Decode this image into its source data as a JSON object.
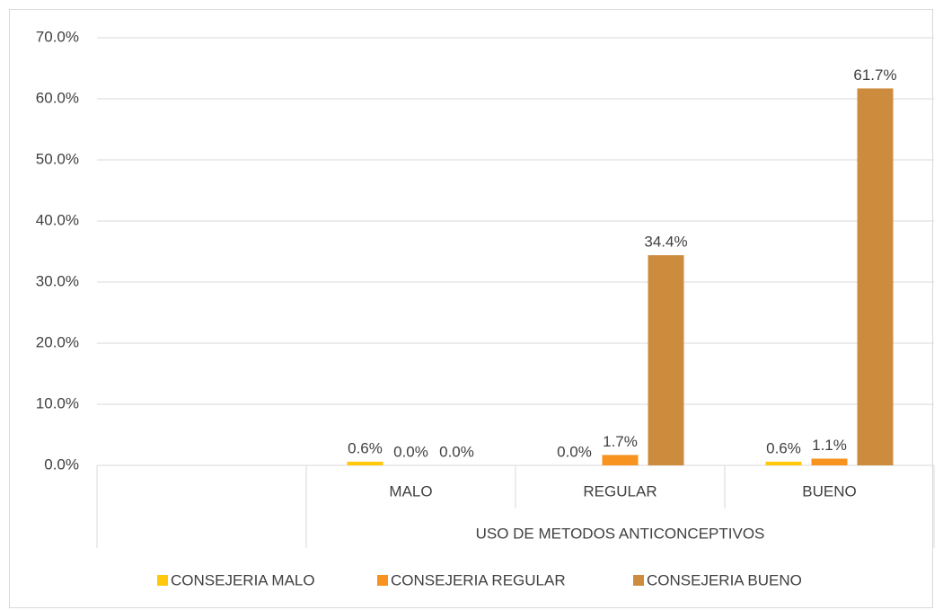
{
  "chart_data": {
    "type": "bar",
    "categories": [
      null,
      "MALO",
      "REGULAR",
      "BUENO"
    ],
    "xlabel": "USO DE METODOS ANTICONCEPTIVOS",
    "series": [
      {
        "name": "CONSEJERIA MALO",
        "color": "#ffc80a",
        "values": [
          null,
          0.6,
          0.0,
          0.6
        ],
        "value_labels": [
          null,
          "0.6%",
          "0.0%",
          "0.6%"
        ]
      },
      {
        "name": "CONSEJERIA REGULAR",
        "color": "#f7931e",
        "values": [
          null,
          0.0,
          1.7,
          1.1
        ],
        "value_labels": [
          null,
          "0.0%",
          "1.7%",
          "1.1%"
        ]
      },
      {
        "name": "CONSEJERIA BUENO",
        "color": "#cd8b3e",
        "values": [
          null,
          0.0,
          34.4,
          61.7
        ],
        "value_labels": [
          null,
          "0.0%",
          "34.4%",
          "61.7%"
        ]
      }
    ],
    "ylim": [
      0,
      70
    ],
    "yticks": [
      {
        "value": 0,
        "label": "0.0%"
      },
      {
        "value": 10,
        "label": "10.0%"
      },
      {
        "value": 20,
        "label": "20.0%"
      },
      {
        "value": 30,
        "label": "30.0%"
      },
      {
        "value": 40,
        "label": "40.0%"
      },
      {
        "value": 50,
        "label": "50.0%"
      },
      {
        "value": 60,
        "label": "60.0%"
      },
      {
        "value": 70,
        "label": "70.0%"
      }
    ],
    "grid": true,
    "legend": "bottom"
  }
}
